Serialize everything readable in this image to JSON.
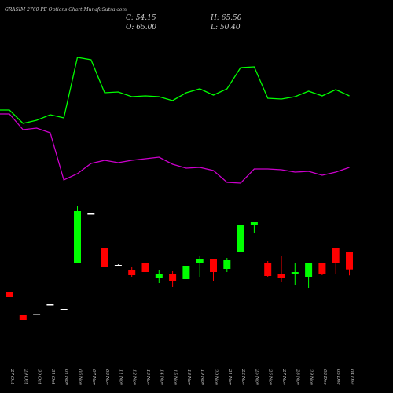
{
  "chart_data": {
    "type": "candlestick",
    "title": "GRASIM 2760 PE Options Chart MunafaSutra.com",
    "ohlc_labels": [
      "C: 54.15",
      "H: 65.50",
      "O: 65.00",
      "L: 50.40"
    ],
    "categories": [
      "27 Oct",
      "29 Oct",
      "30 Oct",
      "31 Oct",
      "01 Nov",
      "06 Nov",
      "07 Nov",
      "08 Nov",
      "11 Nov",
      "12 Nov",
      "13 Nov",
      "14 Nov",
      "15 Nov",
      "18 Nov",
      "19 Nov",
      "20 Nov",
      "21 Nov",
      "22 Nov",
      "25 Nov",
      "26 Nov",
      "27 Nov",
      "28 Nov",
      "29 Nov",
      "02 Dec",
      "03 Dec",
      "04 Dec"
    ],
    "open": [
      39.5,
      25,
      26,
      32,
      29,
      58,
      90,
      68,
      57,
      53.5,
      58.5,
      48.5,
      51.5,
      48,
      58,
      60.5,
      54.5,
      65.5,
      82.5,
      58.5,
      51,
      51,
      49,
      58,
      68,
      65
    ],
    "high": [
      39.5,
      25,
      26,
      32,
      29,
      94.5,
      90,
      68,
      57.5,
      55.5,
      58.5,
      54,
      53,
      56.5,
      62.5,
      60.5,
      61.5,
      82.5,
      84,
      59.5,
      62.5,
      58,
      58.5,
      58,
      68,
      65.5
    ],
    "low": [
      36.5,
      22,
      26,
      32,
      29,
      58,
      90,
      55.5,
      56.5,
      49,
      52.5,
      45.5,
      43,
      48,
      49.5,
      47,
      52.5,
      65.5,
      77.5,
      49,
      46,
      44,
      42.5,
      50.5,
      51.5,
      50.4
    ],
    "close": [
      36.5,
      22,
      26,
      32,
      29,
      91.5,
      90,
      55.5,
      57,
      50.5,
      52.5,
      51.5,
      46.5,
      56,
      60.5,
      52.5,
      60,
      82.5,
      84,
      50,
      48.5,
      52.5,
      58.5,
      51.5,
      58.5,
      54.15
    ],
    "up_color": "#00ff00",
    "down_color": "#ff0000",
    "flat_color": "#ffffff",
    "lines": [
      {
        "color": "#00ff00",
        "values": [
          155.5,
          147,
          149,
          152.5,
          150.5,
          189,
          187.5,
          166.5,
          167,
          164,
          164.5,
          164,
          161.5,
          166.5,
          169,
          165,
          169,
          182.5,
          183,
          163,
          162.5,
          164,
          167.5,
          164.5,
          168.5,
          164.5
        ]
      },
      {
        "color": "#cc00cc",
        "values": [
          153,
          143,
          144,
          141,
          111,
          115,
          121.5,
          123.5,
          122,
          123.5,
          124.5,
          125.5,
          121,
          118.5,
          119,
          117,
          109.5,
          109,
          118,
          118,
          117.5,
          116,
          116.5,
          114,
          116,
          119
        ]
      }
    ],
    "ylim": [
      -24.5,
      225.5
    ]
  }
}
